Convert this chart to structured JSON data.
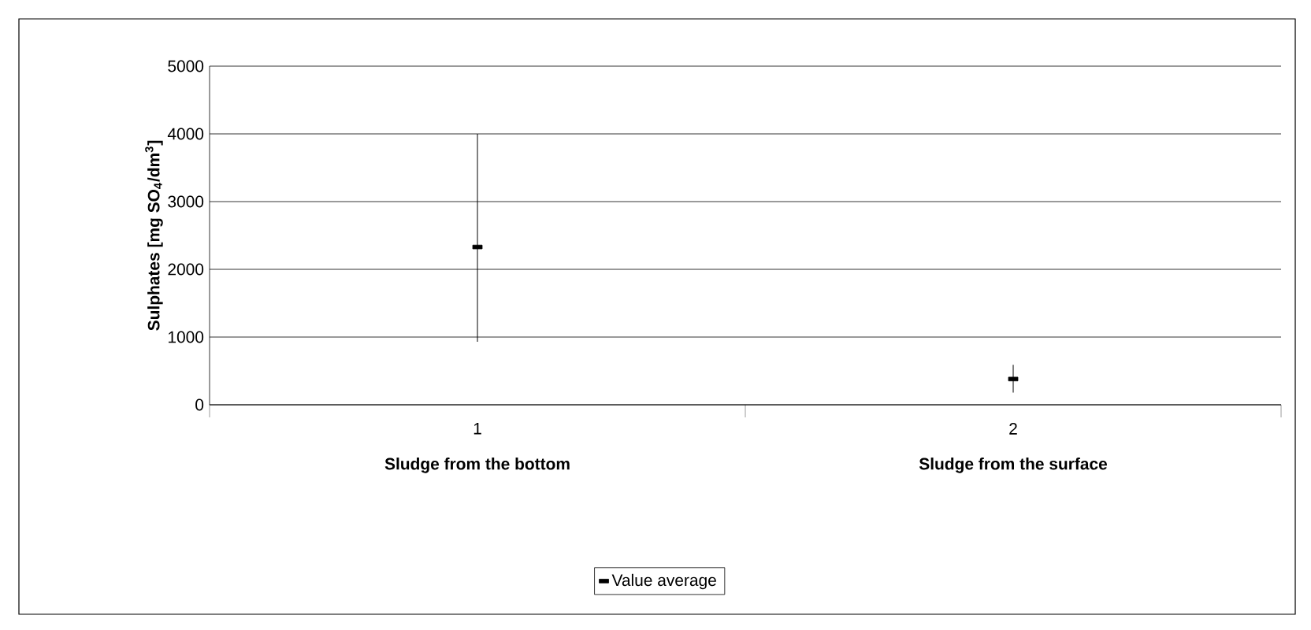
{
  "chart_data": {
    "type": "scatter",
    "categories": [
      "1",
      "2"
    ],
    "series": [
      {
        "name": "Value average",
        "color": "#000000",
        "values": [
          2330,
          380
        ],
        "errors": [
          [
            930,
            4000
          ],
          [
            180,
            590
          ]
        ]
      }
    ],
    "ylabel": "Sulphates [mg SO$_{4}$/dm$^{3}$]",
    "annotations": [
      "Sludge from the bottom",
      "Sludge from the surface"
    ],
    "ylim": [
      0,
      5000
    ],
    "yticks": [
      0,
      1000,
      2000,
      3000,
      4000,
      5000
    ],
    "grid": "y",
    "legend": "bottom",
    "marker": "square"
  }
}
